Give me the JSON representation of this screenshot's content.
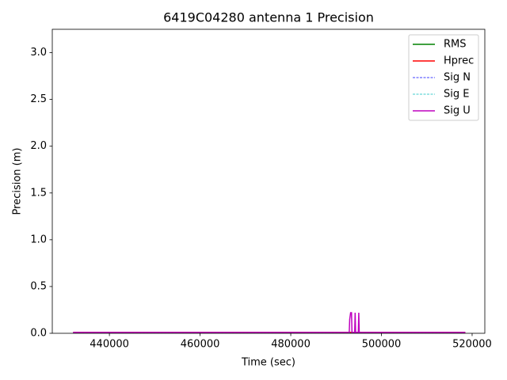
{
  "chart_data": {
    "type": "line",
    "title": "6419C04280 antenna 1 Precision",
    "x_label": "Time (sec)",
    "y_label": "Precision (m)",
    "x": [
      432000,
      492900,
      493000,
      493200,
      493400,
      493500,
      494100,
      494200,
      494300,
      494900,
      495000,
      495100,
      518500
    ],
    "series": [
      {
        "name": "RMS",
        "color": "#008000",
        "linestyle": "solid",
        "values": [
          0.005,
          0.005,
          0.005,
          0.005,
          0.005,
          0.005,
          0.005,
          0.005,
          0.005,
          0.005,
          0.005,
          0.005,
          0.005
        ]
      },
      {
        "name": "Hprec",
        "color": "#ff0000",
        "linestyle": "solid",
        "values": [
          0.01,
          0.01,
          0.01,
          0.01,
          0.01,
          0.01,
          0.01,
          0.01,
          0.01,
          0.01,
          0.01,
          0.01,
          0.01
        ]
      },
      {
        "name": "Sig N",
        "color": "#0000ff",
        "linestyle": "dashed",
        "values": [
          0.005,
          0.005,
          0.005,
          0.005,
          0.005,
          0.005,
          0.005,
          0.005,
          0.005,
          0.005,
          0.005,
          0.005,
          0.005
        ]
      },
      {
        "name": "Sig E",
        "color": "#00bfbf",
        "linestyle": "dashed",
        "values": [
          0.005,
          0.005,
          0.005,
          0.005,
          0.005,
          0.005,
          0.005,
          0.005,
          0.005,
          0.005,
          0.005,
          0.005,
          0.005
        ]
      },
      {
        "name": "Sig U",
        "color": "#bf00bf",
        "linestyle": "solid",
        "values": [
          0.01,
          0.01,
          0.15,
          0.22,
          0.22,
          0.01,
          0.01,
          0.22,
          0.01,
          0.01,
          0.22,
          0.01,
          0.01
        ]
      }
    ],
    "xlim": [
      427400,
      522800
    ],
    "xticks": [
      440000,
      460000,
      480000,
      500000,
      520000
    ],
    "ylim": [
      0,
      3.25
    ],
    "yticks": [
      {
        "value": 0,
        "label": "0.0"
      },
      0.5,
      {
        "value": 1,
        "label": "1.0"
      },
      1.5,
      {
        "value": 2,
        "label": "2.0"
      },
      2.5,
      {
        "value": 3,
        "label": "3.0"
      }
    ],
    "legend": "upper right",
    "grid": false
  }
}
